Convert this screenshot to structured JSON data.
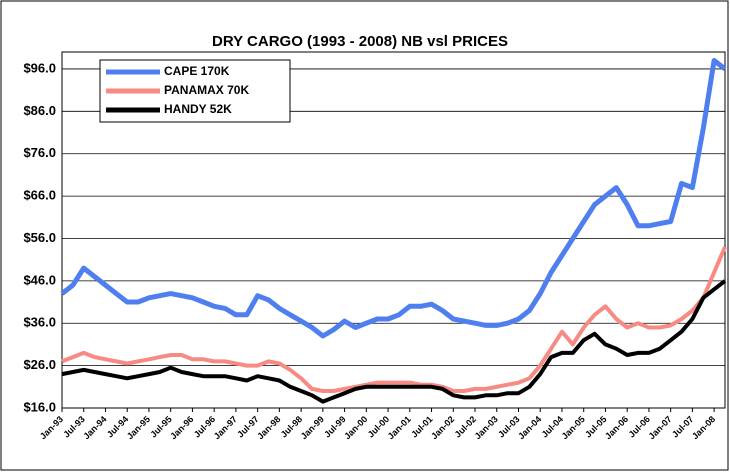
{
  "chart_data": {
    "type": "line",
    "title": "DRY CARGO (1993 - 2008) NB vsl PRICES",
    "categories": [
      "Jan-93",
      null,
      "Jul-93",
      null,
      "Jan-94",
      null,
      "Jul-94",
      null,
      "Jan-95",
      null,
      "Jul-95",
      null,
      "Jan-96",
      null,
      "Jul-96",
      null,
      "Jan-97",
      null,
      "Jul-97",
      null,
      "Jan-98",
      null,
      "Jul-98",
      null,
      "Jan-99",
      null,
      "Jul-99",
      null,
      "Jan-00",
      null,
      "Jul-00",
      null,
      "Jan-01",
      null,
      "Jul-01",
      null,
      "Jan-02",
      null,
      "Jul-02",
      null,
      "Jan-03",
      null,
      "Jul-03",
      null,
      "Jan-04",
      null,
      "Jul-04",
      null,
      "Jan-05",
      null,
      "Jul-05",
      null,
      "Jan-06",
      null,
      "Jul-06",
      null,
      "Jan-07",
      null,
      "Jul-07",
      null,
      "Jan-08",
      null
    ],
    "series": [
      {
        "name": "CAPE 170K",
        "color": "#4f7fef",
        "values": [
          43,
          45,
          49,
          47,
          45,
          43,
          41,
          41,
          42,
          42.5,
          43,
          42.5,
          42,
          41,
          40,
          39.5,
          38,
          38,
          42.5,
          41.5,
          39.5,
          38,
          36.5,
          35,
          33,
          34.5,
          36.5,
          35,
          36,
          37,
          37,
          38,
          40,
          40,
          40.5,
          39,
          37,
          36.5,
          36,
          35.5,
          35.5,
          36,
          37,
          39,
          43,
          48,
          52,
          56,
          60,
          64,
          66,
          68,
          64,
          59,
          59,
          59.5,
          60,
          69,
          68,
          82,
          98,
          96
        ]
      },
      {
        "name": "PANAMAX 70K",
        "color": "#f78a83",
        "values": [
          27,
          28,
          29,
          28,
          27.5,
          27,
          26.5,
          27,
          27.5,
          28,
          28.5,
          28.5,
          27.5,
          27.5,
          27,
          27,
          26.5,
          26,
          26,
          27,
          26.5,
          25,
          23,
          20.5,
          20,
          20,
          20.5,
          21,
          21.5,
          22,
          22,
          22,
          22,
          21.5,
          21.5,
          21,
          20,
          20,
          20.5,
          20.5,
          21,
          21.5,
          22,
          23,
          26,
          30,
          34,
          31,
          35,
          38,
          40,
          37,
          35,
          36,
          35,
          35,
          35.5,
          37,
          39,
          42,
          48,
          54
        ]
      },
      {
        "name": "HANDY 52K",
        "color": "#000000",
        "values": [
          24,
          24.5,
          25,
          24.5,
          24,
          23.5,
          23,
          23.5,
          24,
          24.5,
          25.5,
          24.5,
          24,
          23.5,
          23.5,
          23.5,
          23,
          22.5,
          23.5,
          23,
          22.5,
          21,
          20,
          19,
          17.5,
          18.5,
          19.5,
          20.5,
          21,
          21,
          21,
          21,
          21,
          21,
          21,
          20.5,
          19,
          18.5,
          18.5,
          19,
          19,
          19.5,
          19.5,
          21,
          24,
          28,
          29,
          29,
          32,
          33.5,
          31,
          30,
          28.5,
          29,
          29,
          30,
          32,
          34,
          37,
          42,
          44,
          46
        ]
      }
    ],
    "ylim": [
      16,
      100
    ],
    "yticks": [
      {
        "value": 16,
        "label": "$16.0"
      },
      {
        "value": 26,
        "label": "$26.0"
      },
      {
        "value": 36,
        "label": "$36.0"
      },
      {
        "value": 46,
        "label": "$46.0"
      },
      {
        "value": 56,
        "label": "$56.0"
      },
      {
        "value": 66,
        "label": "$66.0"
      },
      {
        "value": 76,
        "label": "$76.0"
      },
      {
        "value": 86,
        "label": "$86.0"
      },
      {
        "value": 96,
        "label": "$96.0"
      }
    ],
    "grid": true,
    "legend": "upper left"
  }
}
